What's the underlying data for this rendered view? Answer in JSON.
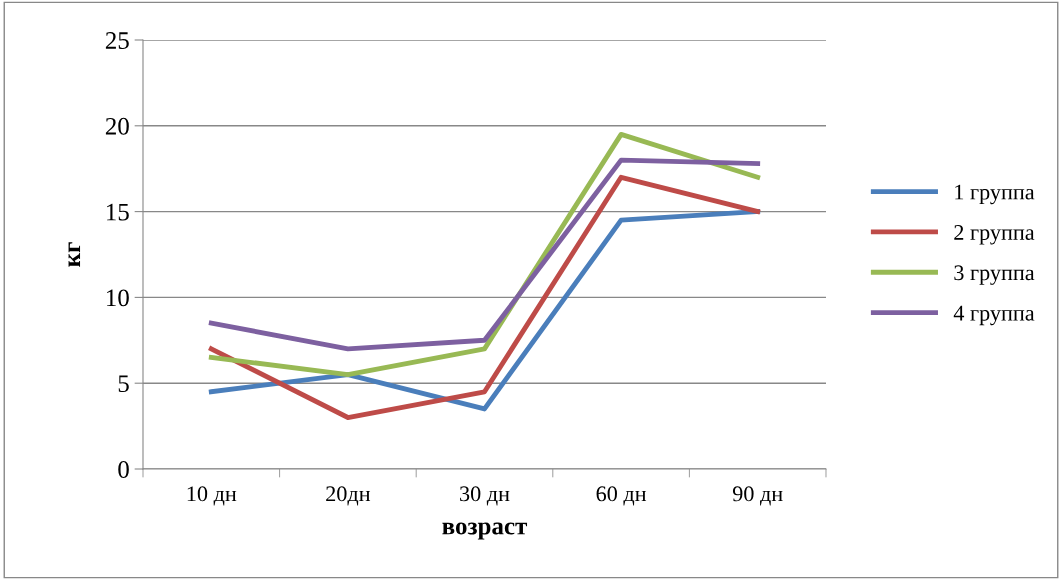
{
  "chart_data": {
    "type": "line",
    "xlabel": "возраст",
    "ylabel": "кг",
    "categories": [
      "10 дн",
      "20дн",
      "30 дн",
      "60 дн",
      "90 дн"
    ],
    "series": [
      {
        "name": "1 группа",
        "color": "#4a7ebb",
        "values": [
          4.5,
          5.5,
          3.5,
          14.5,
          15
        ]
      },
      {
        "name": "2 группа",
        "color": "#be4b48",
        "values": [
          7,
          3,
          4.5,
          17,
          15
        ]
      },
      {
        "name": "3 группа",
        "color": "#98b954",
        "values": [
          6.5,
          5.5,
          7,
          19.5,
          17
        ]
      },
      {
        "name": "4 группа",
        "color": "#7d60a0",
        "values": [
          8.5,
          7,
          7.5,
          18,
          17.8
        ]
      }
    ],
    "ylim": [
      0,
      25
    ],
    "yticks": [
      0,
      5,
      10,
      15,
      20,
      25
    ],
    "grid": "y",
    "legend": "right",
    "marker": "none",
    "line_style": "solid"
  }
}
